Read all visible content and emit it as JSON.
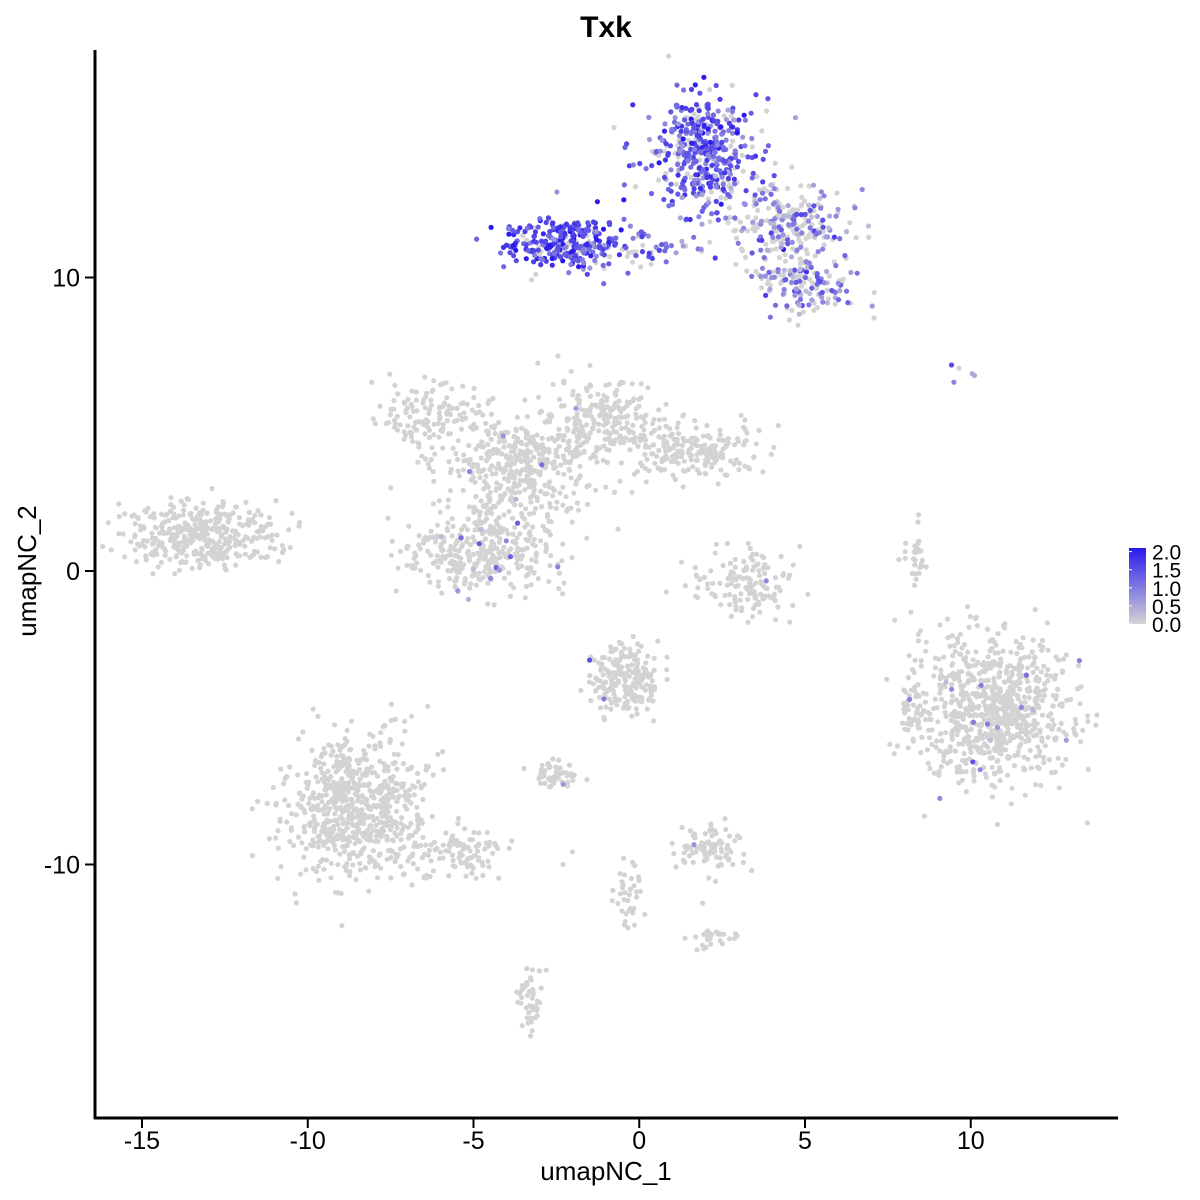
{
  "chart_data": {
    "type": "scatter",
    "title": "Txk",
    "xlabel": "umapNC_1",
    "ylabel": "umapNC_2",
    "xlim": [
      -16.5,
      14.5
    ],
    "ylim": [
      -18.3,
      17.7
    ],
    "x_ticks": [
      -15,
      -10,
      -5,
      0,
      5,
      10
    ],
    "x_tick_labels": [
      "-15",
      "-10",
      "-5",
      "0",
      "5",
      "10"
    ],
    "y_ticks": [
      10,
      0,
      -10
    ],
    "y_tick_labels": [
      "10",
      "0",
      "-10"
    ],
    "grid": false,
    "legend": {
      "position": "right",
      "labels": [
        "2.0",
        "1.5",
        "1.0",
        "0.5",
        "0.0"
      ],
      "values": [
        2.0,
        1.5,
        1.0,
        0.5,
        0.0
      ],
      "low_color": "#D3D3D3",
      "high_color": "#2A1AEF"
    },
    "point_color_low": "#D3D3D3",
    "point_color_high": "#2A1AEF",
    "clusters": [
      {
        "name": "top-left-arm",
        "cx": -2.3,
        "cy": 11.2,
        "sx": 0.9,
        "sy": 0.45,
        "n": 260,
        "expr_frac": 0.85,
        "expr_mean": 1.5
      },
      {
        "name": "top-bridge",
        "cx": -0.5,
        "cy": 11.0,
        "sx": 1.0,
        "sy": 0.3,
        "n": 80,
        "expr_frac": 0.6,
        "expr_mean": 1.0
      },
      {
        "name": "top-center",
        "cx": 1.9,
        "cy": 14.2,
        "sx": 0.8,
        "sy": 1.0,
        "n": 420,
        "expr_frac": 0.85,
        "expr_mean": 1.3
      },
      {
        "name": "top-right-arm",
        "cx": 4.3,
        "cy": 11.7,
        "sx": 1.0,
        "sy": 0.8,
        "n": 260,
        "expr_frac": 0.45,
        "expr_mean": 0.8
      },
      {
        "name": "top-right-tail",
        "cx": 5.1,
        "cy": 9.7,
        "sx": 0.7,
        "sy": 0.5,
        "n": 120,
        "expr_frac": 0.55,
        "expr_mean": 0.9
      },
      {
        "name": "central-hub",
        "cx": -3.5,
        "cy": 3.5,
        "sx": 1.2,
        "sy": 1.0,
        "n": 420,
        "expr_frac": 0.01,
        "expr_mean": 0.7
      },
      {
        "name": "central-left-arm",
        "cx": -6.3,
        "cy": 5.3,
        "sx": 0.9,
        "sy": 0.6,
        "n": 130,
        "expr_frac": 0.01,
        "expr_mean": 0.7
      },
      {
        "name": "central-upper",
        "cx": -1.1,
        "cy": 5.2,
        "sx": 0.8,
        "sy": 0.7,
        "n": 200,
        "expr_frac": 0.0,
        "expr_mean": 0.6
      },
      {
        "name": "central-right-arm",
        "cx": 1.7,
        "cy": 4.1,
        "sx": 1.1,
        "sy": 0.45,
        "n": 200,
        "expr_frac": 0.0,
        "expr_mean": 0.6
      },
      {
        "name": "central-lower-lobe",
        "cx": -4.9,
        "cy": 0.6,
        "sx": 1.1,
        "sy": 0.7,
        "n": 340,
        "expr_frac": 0.03,
        "expr_mean": 0.8
      },
      {
        "name": "left-island",
        "cx": -13.2,
        "cy": 1.2,
        "sx": 1.1,
        "sy": 0.55,
        "n": 380,
        "expr_frac": 0.01,
        "expr_mean": 0.7
      },
      {
        "name": "bottom-left-mass",
        "cx": -8.6,
        "cy": -8.1,
        "sx": 1.1,
        "sy": 1.2,
        "n": 680,
        "expr_frac": 0.0,
        "expr_mean": 0.5
      },
      {
        "name": "bottom-left-tail",
        "cx": -5.6,
        "cy": -9.6,
        "sx": 1.0,
        "sy": 0.4,
        "n": 110,
        "expr_frac": 0.0,
        "expr_mean": 0.5
      },
      {
        "name": "right-island",
        "cx": 10.7,
        "cy": -4.8,
        "sx": 1.1,
        "sy": 1.25,
        "n": 800,
        "expr_frac": 0.012,
        "expr_mean": 0.8
      },
      {
        "name": "right-island-left-edge",
        "cx": 8.2,
        "cy": -4.7,
        "sx": 0.2,
        "sy": 0.6,
        "n": 40,
        "expr_frac": 0.0,
        "expr_mean": 0.5
      },
      {
        "name": "mid-small-ring",
        "cx": 3.2,
        "cy": -0.5,
        "sx": 0.85,
        "sy": 0.55,
        "n": 140,
        "expr_frac": 0.02,
        "expr_mean": 0.8
      },
      {
        "name": "mid-lower-cluster",
        "cx": -0.4,
        "cy": -3.7,
        "sx": 0.5,
        "sy": 0.55,
        "n": 200,
        "expr_frac": 0.02,
        "expr_mean": 0.8
      },
      {
        "name": "lower-small-a",
        "cx": -2.6,
        "cy": -6.9,
        "sx": 0.35,
        "sy": 0.25,
        "n": 55,
        "expr_frac": 0.02,
        "expr_mean": 0.8
      },
      {
        "name": "lower-small-b",
        "cx": 2.2,
        "cy": -9.4,
        "sx": 0.5,
        "sy": 0.4,
        "n": 90,
        "expr_frac": 0.01,
        "expr_mean": 0.7
      },
      {
        "name": "lower-small-c",
        "cx": 2.4,
        "cy": -12.5,
        "sx": 0.35,
        "sy": 0.2,
        "n": 30,
        "expr_frac": 0.0,
        "expr_mean": 0.5
      },
      {
        "name": "lower-tail-d",
        "cx": -3.3,
        "cy": -14.6,
        "sx": 0.2,
        "sy": 0.5,
        "n": 45,
        "expr_frac": 0.0,
        "expr_mean": 0.5
      },
      {
        "name": "lower-tail-e",
        "cx": -0.3,
        "cy": -11.0,
        "sx": 0.25,
        "sy": 0.7,
        "n": 35,
        "expr_frac": 0.03,
        "expr_mean": 0.7
      },
      {
        "name": "right-streak",
        "cx": 8.3,
        "cy": 0.4,
        "sx": 0.2,
        "sy": 0.6,
        "n": 30,
        "expr_frac": 0.0,
        "expr_mean": 0.5
      },
      {
        "name": "upper-right-specks",
        "cx": 9.7,
        "cy": 6.7,
        "sx": 0.2,
        "sy": 0.15,
        "n": 5,
        "expr_frac": 0.8,
        "expr_mean": 1.2
      }
    ]
  }
}
